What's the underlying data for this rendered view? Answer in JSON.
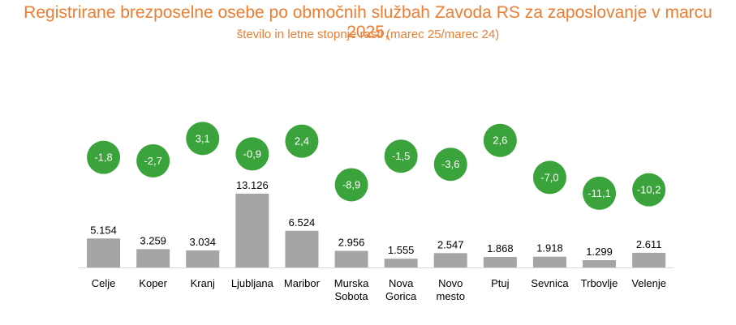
{
  "title": "Registrirane brezposelne osebe po območnih službah Zavoda RS za zaposlovanje v marcu 2025,",
  "subtitle": "število in letne stopnje rasti (marec 25/marec 24)",
  "colors": {
    "title": "#ED7D31",
    "bar": "#A5A5A5",
    "bubble": "#3BA33B",
    "bubble_text": "#ffffff"
  },
  "chart_data": {
    "type": "bar",
    "categories": [
      [
        "Celje"
      ],
      [
        "Koper"
      ],
      [
        "Kranj"
      ],
      [
        "Ljubljana"
      ],
      [
        "Maribor"
      ],
      [
        "Murska",
        "Sobota"
      ],
      [
        "Nova",
        "Gorica"
      ],
      [
        "Novo",
        "mesto"
      ],
      [
        "Ptuj"
      ],
      [
        "Sevnica"
      ],
      [
        "Trbovlje"
      ],
      [
        "Velenje"
      ]
    ],
    "series": [
      {
        "values": [
          5154,
          3259,
          3034,
          13126,
          6524,
          2956,
          1555,
          2547,
          1868,
          1918,
          1299,
          2611
        ],
        "labels": [
          "5.154",
          "3.259",
          "3.034",
          "13.126",
          "6.524",
          "2.956",
          "1.555",
          "2.547",
          "1.868",
          "1.918",
          "1.299",
          "2.611"
        ]
      },
      {
        "values": [
          -1.8,
          -2.7,
          3.1,
          -0.9,
          2.4,
          -8.9,
          -1.5,
          -3.6,
          2.6,
          -7.0,
          -11.1,
          -10.2
        ],
        "labels": [
          "-1,8",
          "-2,7",
          "3,1",
          "-0,9",
          "2,4",
          "-8,9",
          "-1,5",
          "-3,6",
          "2,6",
          "-7,0",
          "-11,1",
          "-10,2"
        ]
      }
    ],
    "legend": "none",
    "grid": false
  }
}
